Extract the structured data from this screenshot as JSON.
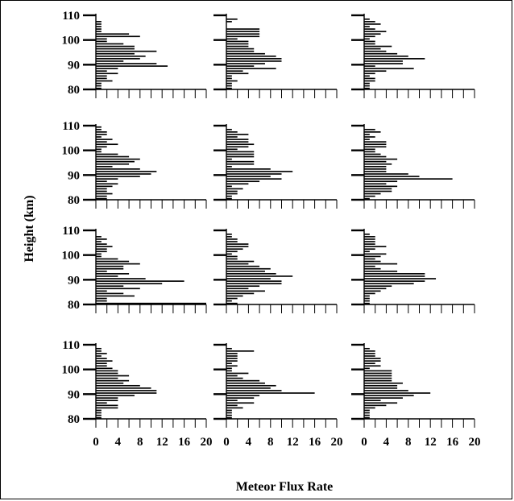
{
  "chart_data": {
    "type": "bar",
    "orientation": "horizontal",
    "layout": "4x3 grid of small-multiple histograms",
    "xlabel": "Meteor Flux Rate",
    "ylabel": "Height (km)",
    "xlim": [
      0,
      20
    ],
    "ylim": [
      80,
      110
    ],
    "x_ticks": [
      0,
      4,
      8,
      12,
      16,
      20
    ],
    "y_ticks": [
      80,
      90,
      100,
      110
    ],
    "bin_km": 1,
    "bar_color": "#000000",
    "panels": [
      {
        "row": 0,
        "col": 0,
        "heights": [
          80,
          81,
          82,
          83,
          84,
          85,
          86,
          87,
          88,
          89,
          90,
          91,
          92,
          93,
          94,
          95,
          96,
          97,
          98,
          99,
          100,
          101,
          102,
          103,
          104,
          105,
          106,
          107,
          108,
          109
        ],
        "values": [
          1,
          1,
          1,
          3,
          2,
          2,
          4,
          2,
          4,
          13,
          11,
          5,
          8,
          9,
          7,
          11,
          7,
          7,
          5,
          2,
          2,
          8,
          6,
          1,
          1,
          1,
          1,
          1,
          0,
          0
        ]
      },
      {
        "row": 0,
        "col": 1,
        "heights": [
          80,
          81,
          82,
          83,
          84,
          85,
          86,
          87,
          88,
          89,
          90,
          91,
          92,
          93,
          94,
          95,
          96,
          97,
          98,
          99,
          100,
          101,
          102,
          103,
          104,
          105,
          106,
          107,
          108,
          109
        ],
        "values": [
          1,
          1,
          1,
          2,
          1,
          1,
          4,
          3,
          9,
          5,
          7,
          10,
          10,
          9,
          7,
          5,
          5,
          4,
          4,
          4,
          2,
          6,
          6,
          6,
          6,
          0,
          0,
          1,
          2,
          0
        ]
      },
      {
        "row": 0,
        "col": 2,
        "heights": [
          80,
          81,
          82,
          83,
          84,
          85,
          86,
          87,
          88,
          89,
          90,
          91,
          92,
          93,
          94,
          95,
          96,
          97,
          98,
          99,
          100,
          101,
          102,
          103,
          104,
          105,
          106,
          107,
          108,
          109
        ],
        "values": [
          1,
          1,
          1,
          2,
          2,
          1,
          2,
          4,
          9,
          2,
          7,
          7,
          11,
          8,
          6,
          4,
          3,
          5,
          2,
          2,
          1,
          2,
          3,
          4,
          2,
          1,
          3,
          2,
          1,
          0
        ]
      },
      {
        "row": 1,
        "col": 0,
        "heights": [
          80,
          81,
          82,
          83,
          84,
          85,
          86,
          87,
          88,
          89,
          90,
          91,
          92,
          93,
          94,
          95,
          96,
          97,
          98,
          99,
          100,
          101,
          102,
          103,
          104,
          105,
          106,
          107,
          108,
          109
        ],
        "values": [
          2,
          2,
          3,
          2,
          2,
          3,
          4,
          2,
          4,
          8,
          10,
          11,
          8,
          3,
          6,
          7,
          8,
          6,
          4,
          1,
          1,
          2,
          4,
          2,
          3,
          1,
          2,
          2,
          1,
          1
        ]
      },
      {
        "row": 1,
        "col": 1,
        "heights": [
          80,
          81,
          82,
          83,
          84,
          85,
          86,
          87,
          88,
          89,
          90,
          91,
          92,
          93,
          94,
          95,
          96,
          97,
          98,
          99,
          100,
          101,
          102,
          103,
          104,
          105,
          106,
          107,
          108,
          109
        ],
        "values": [
          1,
          1,
          2,
          2,
          3,
          1,
          4,
          6,
          10,
          8,
          10,
          12,
          8,
          1,
          5,
          5,
          1,
          5,
          5,
          5,
          2,
          4,
          5,
          4,
          4,
          2,
          4,
          2,
          1,
          0
        ]
      },
      {
        "row": 1,
        "col": 2,
        "heights": [
          80,
          81,
          82,
          83,
          84,
          85,
          86,
          87,
          88,
          89,
          90,
          91,
          92,
          93,
          94,
          95,
          96,
          97,
          98,
          99,
          100,
          101,
          102,
          103,
          104,
          105,
          106,
          107,
          108,
          109
        ],
        "values": [
          1,
          2,
          3,
          5,
          5,
          6,
          4,
          6,
          16,
          10,
          8,
          4,
          4,
          4,
          5,
          4,
          6,
          4,
          3,
          2,
          2,
          4,
          4,
          4,
          1,
          2,
          1,
          3,
          2,
          0
        ]
      },
      {
        "row": 2,
        "col": 0,
        "heights": [
          80,
          81,
          82,
          83,
          84,
          85,
          86,
          87,
          88,
          89,
          90,
          91,
          92,
          93,
          94,
          95,
          96,
          97,
          98,
          99,
          100,
          101,
          102,
          103,
          104,
          105,
          106,
          107,
          108,
          109
        ],
        "values": [
          20,
          2,
          2,
          7,
          5,
          2,
          8,
          5,
          12,
          16,
          9,
          4,
          6,
          2,
          5,
          5,
          8,
          6,
          4,
          1,
          1,
          2,
          2,
          3,
          2,
          1,
          2,
          1,
          0,
          0
        ]
      },
      {
        "row": 2,
        "col": 1,
        "heights": [
          80,
          81,
          82,
          83,
          84,
          85,
          86,
          87,
          88,
          89,
          90,
          91,
          92,
          93,
          94,
          95,
          96,
          97,
          98,
          99,
          100,
          101,
          102,
          103,
          104,
          105,
          106,
          107,
          108,
          109
        ],
        "values": [
          2,
          1,
          2,
          3,
          5,
          7,
          4,
          6,
          10,
          10,
          8,
          12,
          9,
          7,
          8,
          6,
          4,
          5,
          2,
          2,
          1,
          2,
          3,
          4,
          4,
          2,
          2,
          1,
          1,
          0
        ]
      },
      {
        "row": 2,
        "col": 2,
        "heights": [
          80,
          81,
          82,
          83,
          84,
          85,
          86,
          87,
          88,
          89,
          90,
          91,
          92,
          93,
          94,
          95,
          96,
          97,
          98,
          99,
          100,
          101,
          102,
          103,
          104,
          105,
          106,
          107,
          108,
          109
        ],
        "values": [
          1,
          1,
          1,
          1,
          2,
          3,
          4,
          5,
          9,
          11,
          13,
          11,
          11,
          6,
          3,
          2,
          6,
          3,
          2,
          3,
          4,
          1,
          2,
          4,
          2,
          2,
          2,
          2,
          1,
          0
        ]
      },
      {
        "row": 3,
        "col": 0,
        "heights": [
          80,
          81,
          82,
          83,
          84,
          85,
          86,
          87,
          88,
          89,
          90,
          91,
          92,
          93,
          94,
          95,
          96,
          97,
          98,
          99,
          100,
          101,
          102,
          103,
          104,
          105,
          106,
          107,
          108,
          109
        ],
        "values": [
          1,
          1,
          1,
          1,
          4,
          4,
          2,
          4,
          4,
          7,
          11,
          11,
          10,
          8,
          5,
          6,
          4,
          6,
          4,
          4,
          3,
          2,
          2,
          3,
          2,
          1,
          2,
          1,
          1,
          0
        ]
      },
      {
        "row": 3,
        "col": 1,
        "heights": [
          80,
          81,
          82,
          83,
          84,
          85,
          86,
          87,
          88,
          89,
          90,
          91,
          92,
          93,
          94,
          95,
          96,
          97,
          98,
          99,
          100,
          101,
          102,
          103,
          104,
          105,
          106,
          107,
          108,
          109
        ],
        "values": [
          1,
          1,
          1,
          1,
          3,
          2,
          5,
          2,
          5,
          6,
          16,
          10,
          8,
          9,
          7,
          6,
          3,
          2,
          4,
          1,
          1,
          2,
          1,
          2,
          2,
          2,
          2,
          5,
          1,
          0
        ]
      },
      {
        "row": 3,
        "col": 2,
        "heights": [
          80,
          81,
          82,
          83,
          84,
          85,
          86,
          87,
          88,
          89,
          90,
          91,
          92,
          93,
          94,
          95,
          96,
          97,
          98,
          99,
          100,
          101,
          102,
          103,
          104,
          105,
          106,
          107,
          108,
          109
        ],
        "values": [
          1,
          1,
          1,
          1,
          2,
          4,
          6,
          3,
          7,
          9,
          12,
          8,
          6,
          6,
          7,
          5,
          5,
          5,
          5,
          5,
          1,
          3,
          2,
          3,
          3,
          2,
          2,
          2,
          1,
          0
        ]
      }
    ]
  }
}
